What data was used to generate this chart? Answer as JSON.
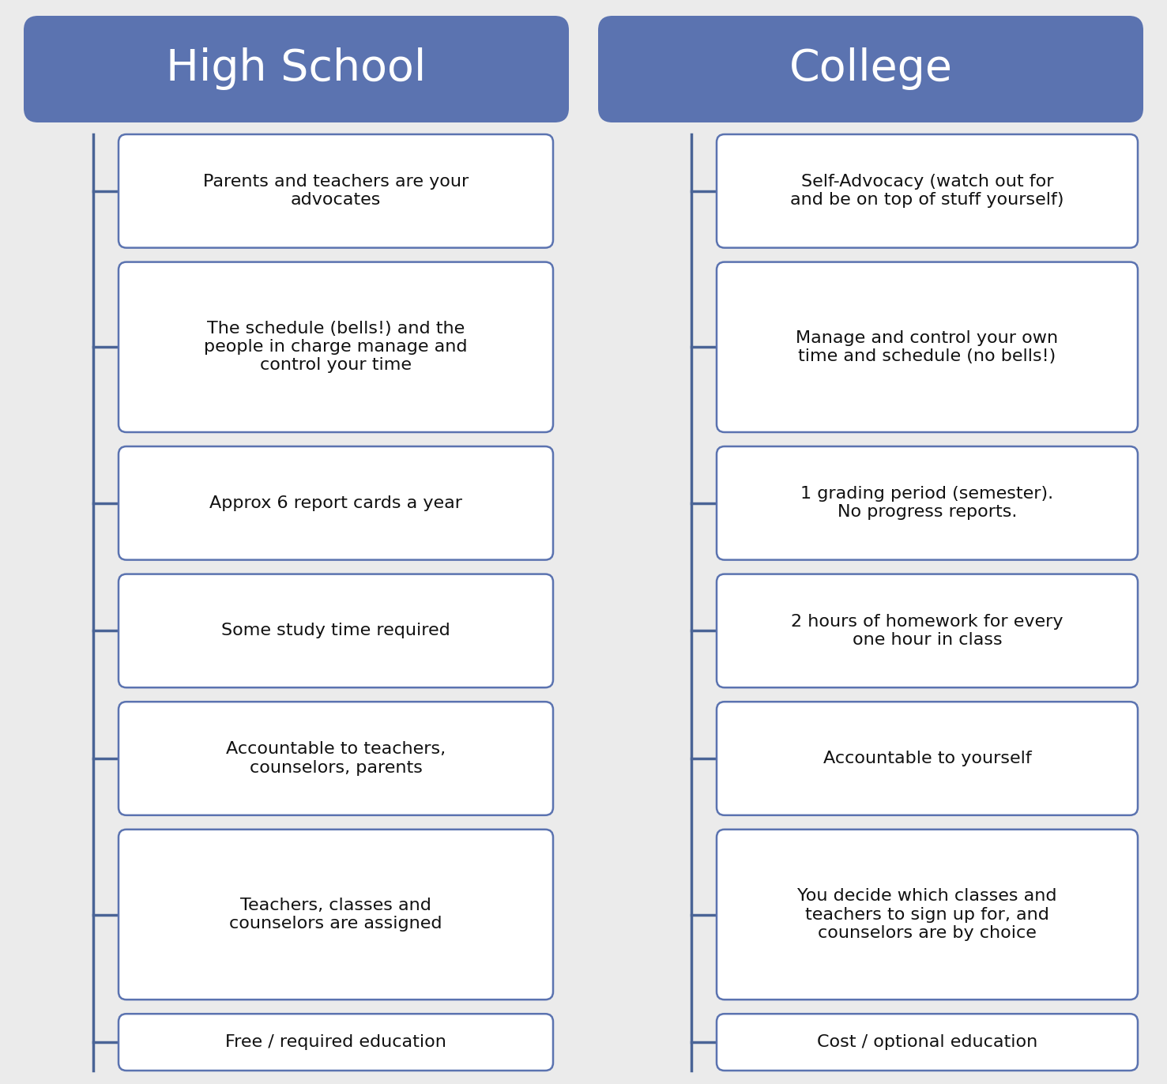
{
  "background_color": "#ebebeb",
  "header_color": "#5b73b0",
  "header_text_color": "#ffffff",
  "box_fill_color": "#ffffff",
  "box_edge_color": "#5b73b0",
  "text_color": "#111111",
  "line_color": "#4a6496",
  "left_title": "High School",
  "right_title": "College",
  "left_items": [
    "Parents and teachers are your\nadvocates",
    "The schedule (bells!) and the\npeople in charge manage and\ncontrol your time",
    "Approx 6 report cards a year",
    "Some study time required",
    "Accountable to teachers,\ncounselors, parents",
    "Teachers, classes and\ncounselors are assigned",
    "Free / required education"
  ],
  "right_items": [
    "Self-Advocacy (watch out for\nand be on top of stuff yourself)",
    "Manage and control your own\ntime and schedule (no bells!)",
    "1 grading period (semester).\nNo progress reports.",
    "2 hours of homework for every\none hour in class",
    "Accountable to yourself",
    "You decide which classes and\nteachers to sign up for, and\ncounselors are by choice",
    "Cost / optional education"
  ],
  "title_fontsize": 40,
  "item_fontsize": 16,
  "fig_width": 14.77,
  "fig_height": 13.72
}
